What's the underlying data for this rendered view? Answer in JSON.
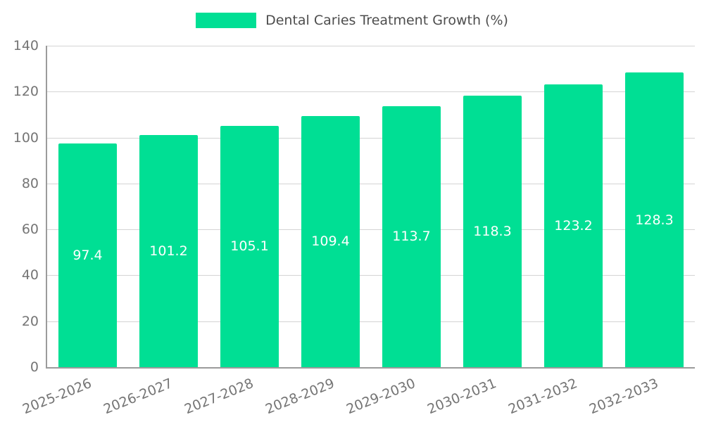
{
  "legend": {
    "label": "Dental Caries Treatment Growth (%)"
  },
  "chart_data": {
    "type": "bar",
    "title": "Dental Caries Treatment Growth (%)",
    "categories": [
      "2025-2026",
      "2026-2027",
      "2027-2028",
      "2028-2029",
      "2029-2030",
      "2030-2031",
      "2031-2032",
      "2032-2033"
    ],
    "values": [
      97.4,
      101.2,
      105.1,
      109.4,
      113.7,
      118.3,
      123.2,
      128.3
    ],
    "value_labels": [
      "97.4",
      "101.2",
      "105.1",
      "109.4",
      "113.7",
      "118.3",
      "123.2",
      "128.3"
    ],
    "xlabel": "",
    "ylabel": "",
    "ylim": [
      0,
      140
    ],
    "yticks": [
      0,
      20,
      40,
      60,
      80,
      100,
      120,
      140
    ],
    "grid": true,
    "legend_position": "top",
    "bar_color": "#00df94",
    "value_label_color": "#ffffff",
    "axis_color": "#9b9b9b",
    "grid_color": "#d4d4d4",
    "tick_label_color": "#757575"
  }
}
